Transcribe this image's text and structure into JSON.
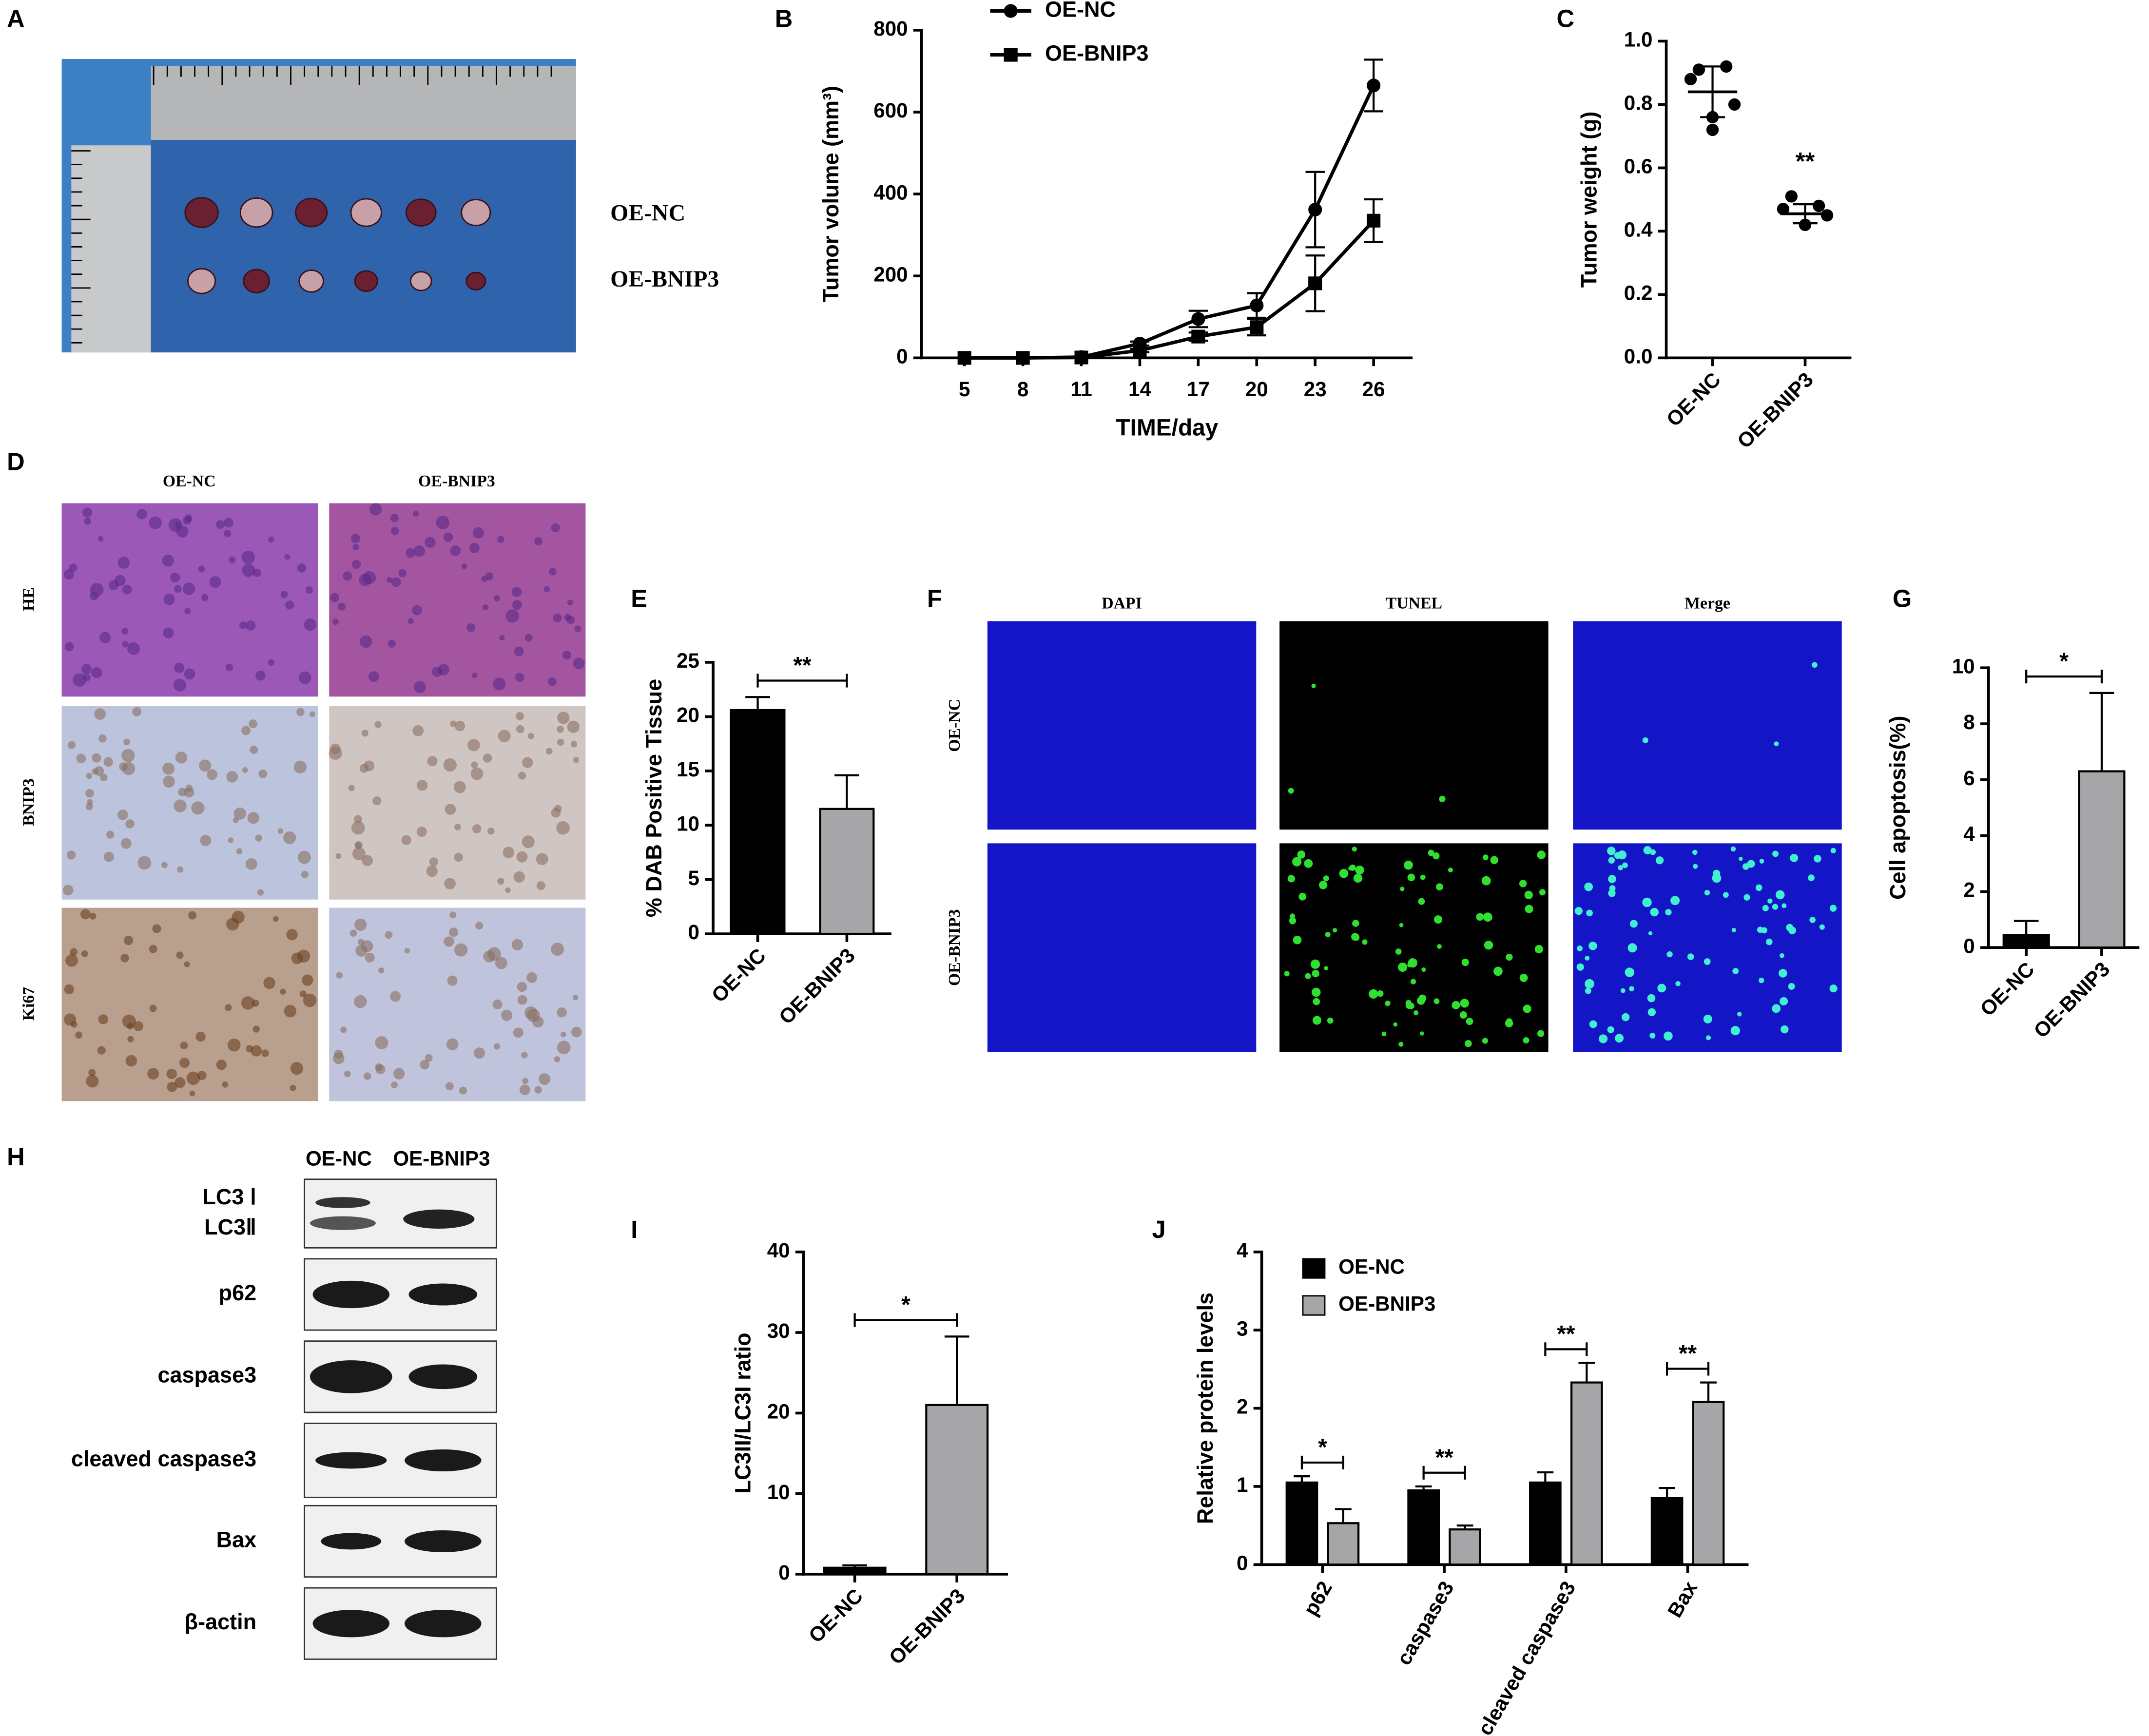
{
  "chart_data": [
    {
      "type": "line",
      "panel": "B",
      "xlabel": "TIME/day",
      "ylabel": "Tumor volume (mm³)",
      "x": [
        5,
        8,
        11,
        14,
        17,
        20,
        23,
        26
      ],
      "xlim": [
        2.8,
        28
      ],
      "xticks": [
        5,
        8,
        11,
        14,
        17,
        20,
        23,
        26
      ],
      "ylim": [
        0,
        800
      ],
      "yticks": [
        0,
        200,
        400,
        600,
        800
      ],
      "series": [
        {
          "name": "OE-NC",
          "color": "#000000",
          "marker": "circle",
          "values": [
            0,
            0,
            2,
            35,
            95,
            128,
            362,
            665
          ],
          "errors": [
            0,
            0,
            1,
            5,
            20,
            30,
            92,
            63
          ]
        },
        {
          "name": "OE-BNIP3",
          "color": "#000000",
          "marker": "square",
          "values": [
            0,
            0,
            1,
            18,
            52,
            75,
            182,
            335
          ],
          "errors": [
            0,
            0,
            1,
            4,
            10,
            20,
            68,
            52
          ]
        }
      ]
    },
    {
      "type": "scatter",
      "panel": "C",
      "ylabel": "Tumor weight (g)",
      "categories": [
        "OE-NC",
        "OE-BNIP3"
      ],
      "points": [
        [
          0.91,
          0.92,
          0.88,
          0.8,
          0.76,
          0.72
        ],
        [
          0.51,
          0.48,
          0.47,
          0.45,
          0.42,
          0.42
        ]
      ],
      "means": [
        0.84,
        0.455
      ],
      "sds": [
        0.08,
        0.03
      ],
      "color": "#000000",
      "ylim": [
        0,
        1
      ],
      "yticks": [
        {
          "value": 0,
          "label": "0.0"
        },
        0.2,
        0.4,
        0.6,
        0.8,
        {
          "value": 1,
          "label": "1.0"
        }
      ],
      "annotations": [
        null,
        "**"
      ]
    },
    {
      "type": "bar",
      "panel": "E",
      "ylabel": "% DAB Positive Tissue",
      "categories": [
        "OE-NC",
        "OE-BNIP3"
      ],
      "values": [
        20.6,
        11.5
      ],
      "errors": [
        1.2,
        3.1
      ],
      "colors": [
        "#000000",
        "#a6a6a9"
      ],
      "ylim": [
        0,
        25
      ],
      "yticks": [
        0,
        5,
        10,
        15,
        20,
        25
      ],
      "annotation": "**"
    },
    {
      "type": "bar",
      "panel": "G",
      "ylabel": "Cell apoptosis(%)",
      "categories": [
        "OE-NC",
        "OE-BNIP3"
      ],
      "values": [
        0.45,
        6.3
      ],
      "errors": [
        0.5,
        2.8
      ],
      "colors": [
        "#000000",
        "#a6a6a9"
      ],
      "ylim": [
        0,
        10
      ],
      "yticks": [
        0,
        2,
        4,
        6,
        8,
        10
      ],
      "annotation": "*"
    },
    {
      "type": "bar",
      "panel": "I",
      "ylabel": "LC3II/LC3I ratio",
      "categories": [
        "OE-NC",
        "OE-BNIP3"
      ],
      "values": [
        0.8,
        21
      ],
      "errors": [
        0.3,
        8.5
      ],
      "colors": [
        "#000000",
        "#a6a6a9"
      ],
      "ylim": [
        0,
        40
      ],
      "yticks": [
        0,
        10,
        20,
        30,
        40
      ],
      "annotation": "*"
    },
    {
      "type": "bar",
      "panel": "J",
      "ylabel": "Relative protein levels",
      "categories": [
        "p62",
        "caspase3",
        "cleaved caspase3",
        "Bax"
      ],
      "series": [
        {
          "name": "OE-NC",
          "color": "#000000",
          "values": [
            1.05,
            0.95,
            1.05,
            0.85
          ],
          "errors": [
            0.08,
            0.05,
            0.13,
            0.13
          ]
        },
        {
          "name": "OE-BNIP3",
          "color": "#a6a6a9",
          "values": [
            0.53,
            0.45,
            2.33,
            2.08
          ],
          "errors": [
            0.18,
            0.05,
            0.25,
            0.25
          ]
        }
      ],
      "ylim": [
        0,
        4
      ],
      "yticks": [
        0,
        1,
        2,
        3,
        4
      ],
      "annotations": [
        "*",
        "**",
        "**",
        "**"
      ],
      "legend": "top-left"
    }
  ],
  "photos": [
    {
      "letter": "A",
      "labels": [
        "OE-NC",
        "OE-BNIP3"
      ]
    },
    {
      "letter": "D",
      "columns": [
        "OE-NC",
        "OE-BNIP3"
      ],
      "rows": [
        "HE",
        "BNIP3",
        "Ki67"
      ]
    },
    {
      "letter": "F",
      "columns": [
        "DAPI",
        "TUNEL",
        "Merge"
      ],
      "rows": [
        "OE-NC",
        "OE-BNIP3"
      ]
    },
    {
      "letter": "H",
      "columns": [
        "OE-NC",
        "OE-BNIP3"
      ],
      "rows": [
        [
          "LC3 Ⅰ",
          "LC3Ⅱ"
        ],
        [
          "p62"
        ],
        [
          "caspase3"
        ],
        [
          "cleaved caspase3"
        ],
        [
          "Bax"
        ],
        [
          "β-actin"
        ]
      ]
    }
  ]
}
